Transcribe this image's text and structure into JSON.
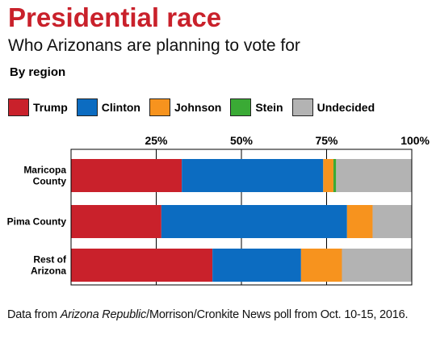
{
  "title": "Presidential race",
  "subtitle": "Who Arizonans are planning to vote for",
  "section_label": "By region",
  "colors": {
    "Trump": "#c9212b",
    "Clinton": "#0c6cc1",
    "Johnson": "#f7931e",
    "Stein": "#3aaa35",
    "Undecided": "#b3b3b3"
  },
  "note": {
    "prefix": "Data from ",
    "publication": "Arizona Republic",
    "suffix": "/Morrison/Cronkite News poll from Oct. 10-15, 2016."
  },
  "chart_data": {
    "type": "bar",
    "orientation": "horizontal",
    "stacked": true,
    "categories": [
      "Maricopa County",
      "Pima County",
      "Rest of Arizona"
    ],
    "series": [
      {
        "name": "Trump",
        "values": [
          32.5,
          26.5,
          41.5
        ]
      },
      {
        "name": "Clinton",
        "values": [
          41.5,
          54.5,
          26.0
        ]
      },
      {
        "name": "Johnson",
        "values": [
          3.0,
          7.5,
          12.0
        ]
      },
      {
        "name": "Stein",
        "values": [
          0.8,
          0.0,
          0.0
        ]
      },
      {
        "name": "Undecided",
        "values": [
          22.2,
          11.5,
          20.5
        ]
      }
    ],
    "xlim": [
      0,
      100
    ],
    "xticks": [
      25,
      50,
      75,
      100
    ],
    "xtick_labels": [
      "25%",
      "50%",
      "75%",
      "100%"
    ],
    "grid": true,
    "legend": "top"
  }
}
